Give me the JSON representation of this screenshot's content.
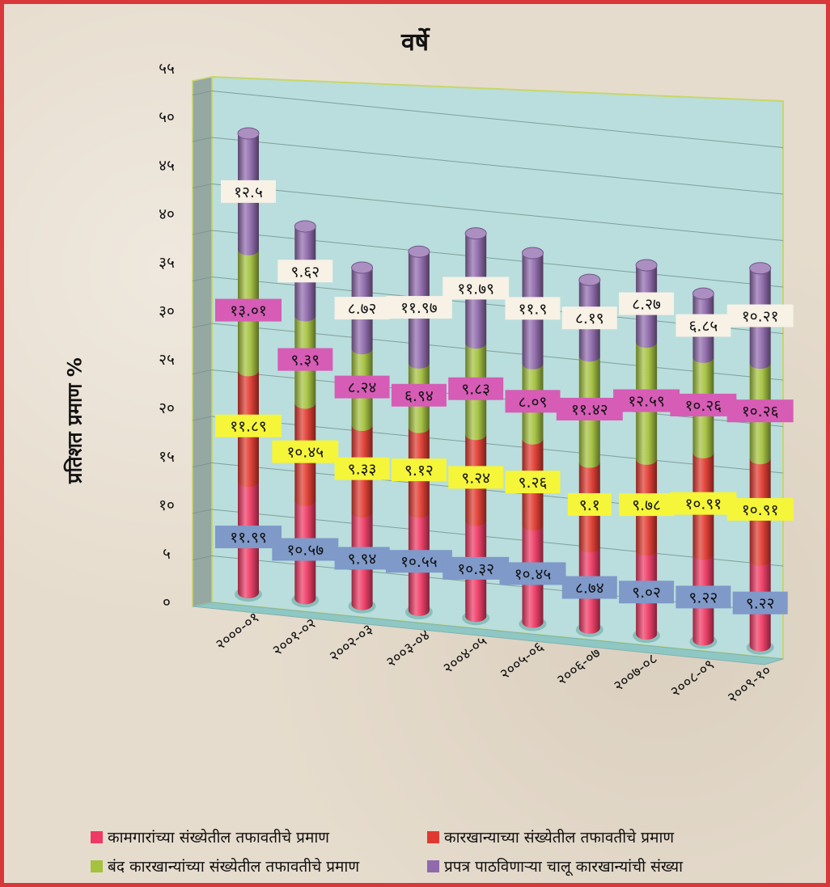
{
  "chart_data": {
    "type": "bar",
    "stacked": true,
    "title": "वर्षे",
    "ylabel": "प्रतिशत प्रमाण %",
    "ylim": [
      0,
      55
    ],
    "ytick_labels": [
      "०",
      "५",
      "१०",
      "१५",
      "२०",
      "२५",
      "३०",
      "३५",
      "४०",
      "४५",
      "५०",
      "५५"
    ],
    "categories": [
      "२०००-०१",
      "२००१-०२",
      "२००२-०३",
      "२००३-०४",
      "२००४-०५",
      "२००५-०६",
      "२००६-०७",
      "२००७-०८",
      "२००८-०९",
      "२००९-१०"
    ],
    "series": [
      {
        "name": "कामगारांच्या संख्येतील तफावतीचे प्रमाण",
        "color": "#ee3a64",
        "label_bg": "#7f99c9",
        "values": [
          11.99,
          10.57,
          9.94,
          10.55,
          10.32,
          10.45,
          8.74,
          9.02,
          9.22,
          9.22
        ],
        "labels": [
          "११.९९",
          "१०.५७",
          "९.९४",
          "१०.५५",
          "१०.३२",
          "१०.४५",
          "८.७४",
          "९.०२",
          "९.२२",
          "९.२२"
        ]
      },
      {
        "name": "कारखान्याच्या संख्येतील तफावतीचे प्रमाण",
        "color": "#e03a30",
        "label_bg": "#f5f53a",
        "values": [
          11.89,
          10.45,
          9.33,
          9.12,
          9.24,
          9.26,
          9.1,
          9.78,
          10.91,
          10.91
        ],
        "labels": [
          "११.८९",
          "१०.४५",
          "९.३३",
          "९.१२",
          "९.२४",
          "९.२६",
          "९.१",
          "९.७८",
          "१०.९१",
          "१०.९१"
        ]
      },
      {
        "name": "बंद कारखान्यांच्या संख्येतील तफावतीचे प्रमाण",
        "color": "#a4c23e",
        "label_bg": "#d65cb6",
        "values": [
          13.01,
          9.39,
          8.24,
          6.94,
          9.83,
          8.09,
          11.42,
          12.59,
          10.26,
          10.26
        ],
        "labels": [
          "१३.०१",
          "९.३९",
          "८.२४",
          "६.९४",
          "९.८३",
          "८.०९",
          "११.४२",
          "१२.५९",
          "१०.२६",
          "१०.२६"
        ]
      },
      {
        "name": "प्रपत्र पाठविणाऱ्या चालू कारखान्यांची संख्या",
        "color": "#8f6aac",
        "label_bg": "#f7f1e6",
        "values": [
          12.5,
          9.62,
          8.72,
          11.97,
          11.79,
          11.9,
          8.19,
          8.27,
          6.85,
          10.21
        ],
        "labels": [
          "१२.५",
          "९.६२",
          "८.७२",
          "११.९७",
          "११.७९",
          "११.९",
          "८.१९",
          "८.२७",
          "६.८५",
          "१०.२१"
        ]
      }
    ],
    "legend_position": "bottom",
    "grid": true
  }
}
